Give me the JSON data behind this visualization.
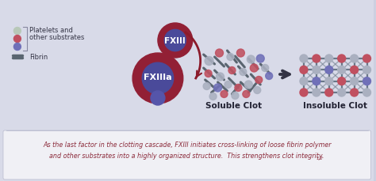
{
  "bg_color": "#cdd0e0",
  "bg_top_color": "#d8dae8",
  "border_color": "#b8bace",
  "bottom_bg_color": "#f0f0f5",
  "bottom_text_color": "#8b2a3a",
  "text1": "As the last factor in the clotting cascade, FXIII initiates cross-linking of loose fibrin polymer",
  "text2": "and other substrates into a highly organized structure.  This strengthens clot integrity.",
  "superscript": "1,2",
  "legend_label1": "Platelets and",
  "legend_label2": "other substrates",
  "legend_fibrin": "Fibrin",
  "fxiii_outer": "#922035",
  "fxiii_inner": "#4a4a9a",
  "fxiiia_outer": "#922035",
  "fxiiia_inner": "#4a4a9a",
  "fxiiia_notch": "#5555aa",
  "arrow_color": "#8b1a2a",
  "soluble_label": "Soluble Clot",
  "insoluble_label": "Insoluble Clot",
  "label_color": "#222233",
  "node_gray": "#aab0c0",
  "node_red": "#c05060",
  "node_purple": "#7070b8",
  "fibrin_color": "#5a6570",
  "net_line_color": "#6a7888",
  "big_arrow_color": "#333344",
  "legend_dot1": "#b8c8b8",
  "legend_dot2": "#c05060",
  "legend_dot3": "#7070b8"
}
